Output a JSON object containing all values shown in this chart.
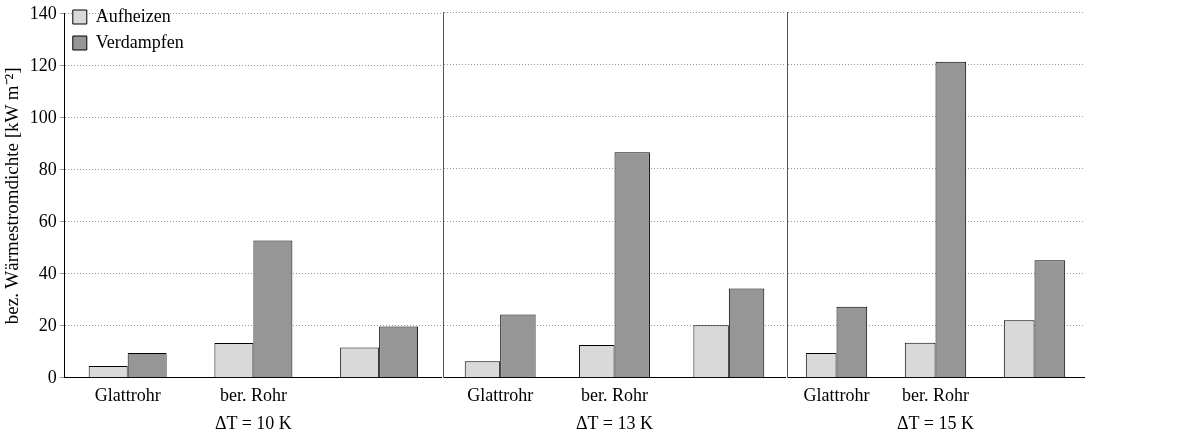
{
  "chart_data": [
    {
      "type": "bar",
      "ylabel": "bez. Wärmestromdichte [kW m⁻²]",
      "xlabel": "ΔT = 10 K",
      "categories": [
        "Glattrohr",
        "ber. Rohr",
        null
      ],
      "series": [
        {
          "name": "Aufheizen",
          "color": "#d9d9d9",
          "values": [
            4.5,
            13.4,
            11.7
          ]
        },
        {
          "name": "Verdampfen",
          "color": "#969696",
          "values": [
            9.5,
            52.8,
            19.7
          ]
        }
      ],
      "ylim": [
        0,
        140
      ],
      "yticks": [
        0,
        20,
        40,
        60,
        80,
        100,
        120,
        140
      ],
      "grid": "y",
      "legend": "top left"
    },
    {
      "type": "bar",
      "xlabel": "ΔT = 13 K",
      "categories": [
        "Glattrohr",
        "ber. Rohr",
        null
      ],
      "series": [
        {
          "color": "#d9d9d9",
          "values": [
            6.3,
            12.6,
            20.1
          ]
        },
        {
          "color": "#969696",
          "values": [
            24.2,
            86.3,
            34.2
          ]
        }
      ],
      "ylim": [
        0,
        140
      ],
      "yticks": [
        0,
        20,
        40,
        60,
        80,
        100,
        120,
        140
      ],
      "grid": "y",
      "tick_labels": "x"
    },
    {
      "type": "bar",
      "xlabel": "ΔT = 15 K",
      "categories": [
        "Glattrohr",
        "ber. Rohr",
        null
      ],
      "series": [
        {
          "color": "#d9d9d9",
          "values": [
            9.5,
            13.4,
            22
          ]
        },
        {
          "color": "#969696",
          "values": [
            27.2,
            121,
            45
          ]
        }
      ],
      "ylim": [
        0,
        140
      ],
      "yticks": [
        0,
        20,
        40,
        60,
        80,
        100,
        120,
        140
      ],
      "grid": "y",
      "tick_labels": "x"
    }
  ]
}
